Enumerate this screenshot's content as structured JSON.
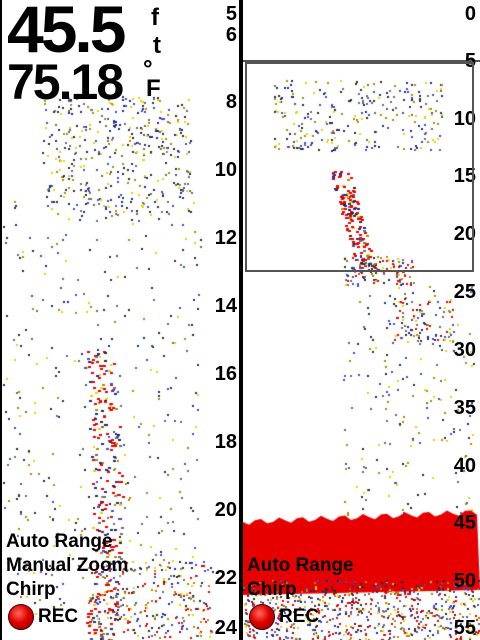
{
  "left_panel": {
    "depth_value": "45.5",
    "depth_unit_1": "f",
    "depth_unit_2": "t",
    "temp_value": "75.18",
    "temp_unit_1": "°",
    "temp_unit_2": "F",
    "depth_scale": [
      "5",
      "6",
      "8",
      "10",
      "12",
      "14",
      "16",
      "18",
      "20",
      "22",
      "24"
    ],
    "status": [
      "Auto Range",
      "Manual Zoom",
      "Chirp"
    ],
    "rec_label": "REC"
  },
  "right_panel": {
    "depth_scale": [
      "0",
      "5",
      "10",
      "15",
      "20",
      "25",
      "30",
      "35",
      "40",
      "45",
      "50",
      "55"
    ],
    "status": [
      "Auto Range",
      "Chirp"
    ],
    "rec_label": "REC"
  },
  "colors": {
    "bottom_return": "#e60000",
    "frame": "#555555",
    "background": "#ffffff"
  }
}
